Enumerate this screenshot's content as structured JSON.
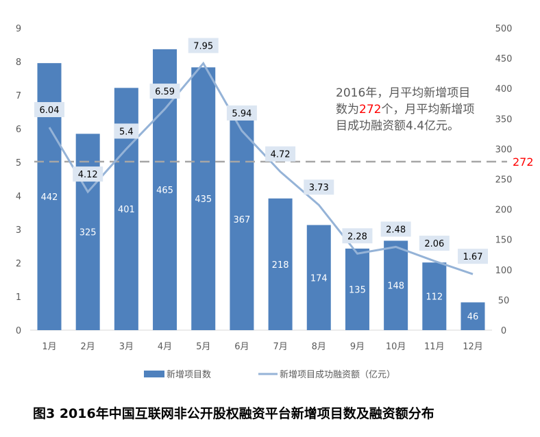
{
  "chart_data": {
    "type": "bar+line",
    "title": "图3 2016年中国互联网非公开股权融资平台新增项目数及融资额分布",
    "categories": [
      "1月",
      "2月",
      "3月",
      "4月",
      "5月",
      "6月",
      "7月",
      "8月",
      "9月",
      "10月",
      "11月",
      "12月"
    ],
    "series": [
      {
        "name": "新增项目数",
        "type": "bar",
        "axis": "right",
        "color": "#4f81bd",
        "values": [
          442,
          325,
          401,
          465,
          435,
          367,
          218,
          174,
          135,
          148,
          112,
          46
        ]
      },
      {
        "name": "新增项目成功融资额（亿元）",
        "type": "line",
        "axis": "left",
        "color": "#95b3d7",
        "values": [
          6.04,
          4.12,
          5.4,
          6.59,
          7.95,
          5.94,
          4.72,
          3.73,
          2.28,
          2.48,
          2.06,
          1.67
        ]
      }
    ],
    "left_axis": {
      "ylim": [
        0,
        9
      ],
      "ticks": [
        0,
        1,
        2,
        3,
        4,
        5,
        6,
        7,
        8,
        9
      ]
    },
    "right_axis": {
      "ylim": [
        0,
        500
      ],
      "ticks": [
        0,
        50,
        100,
        150,
        200,
        250,
        300,
        350,
        400,
        450,
        500
      ]
    },
    "reference_line": {
      "value": 272,
      "axis": "right",
      "label": "272",
      "label_color": "#ff0000",
      "color": "#a6a6a6",
      "style": "dashed"
    },
    "annotation": {
      "before": "2016年，月平均新增项目数为",
      "highlight": "272",
      "after": "个，月平均新增项目成功融资额4.4亿元。",
      "highlight_color": "#ff0000"
    },
    "legend": {
      "placement": "bottom",
      "entries": [
        "新增项目数",
        "新增项目成功融资额（亿元）"
      ]
    }
  }
}
